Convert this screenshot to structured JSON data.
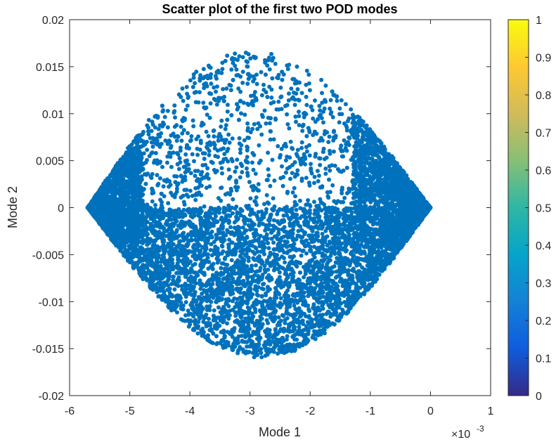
{
  "chart_data": {
    "type": "scatter",
    "title": "Scatter plot of the first two POD modes",
    "xlabel": "Mode 1",
    "ylabel": "Mode 2",
    "x_exponent_label": "×10",
    "x_exponent_power": "-3",
    "xlim": [
      -6,
      1
    ],
    "ylim": [
      -0.02,
      0.02
    ],
    "x_ticks": [
      -6,
      -5,
      -4,
      -3,
      -2,
      -1,
      0,
      1
    ],
    "x_tick_labels": [
      "-6",
      "-5",
      "-4",
      "-3",
      "-2",
      "-1",
      "0",
      "1"
    ],
    "y_ticks": [
      -0.02,
      -0.015,
      -0.01,
      -0.005,
      0,
      0.005,
      0.01,
      0.015,
      0.02
    ],
    "y_tick_labels": [
      "-0.02",
      "-0.015",
      "-0.01",
      "-0.005",
      "0",
      "0.005",
      "0.01",
      "0.015",
      "0.02"
    ],
    "grid": false,
    "marker_color": "#0072BD",
    "point_cloud": {
      "shape": "lens",
      "x_range": [
        -5.7,
        0.0
      ],
      "y_upper_peak": [
        -3.0,
        0.0167
      ],
      "y_lower_peak": [
        -2.8,
        -0.016
      ],
      "dense_regions": [
        "left wedge",
        "right wedge",
        "lower half"
      ]
    },
    "colorbar": {
      "colormap": "parula",
      "range": [
        0,
        1
      ],
      "ticks": [
        0,
        0.1,
        0.2,
        0.3,
        0.4,
        0.5,
        0.6,
        0.7,
        0.8,
        0.9,
        1
      ],
      "tick_labels": [
        "0",
        "0.1",
        "0.2",
        "0.3",
        "0.4",
        "0.5",
        "0.6",
        "0.7",
        "0.8",
        "0.9",
        "1"
      ],
      "colors": [
        "#352A87",
        "#0F5CDD",
        "#1481D6",
        "#06A4CA",
        "#2EB7A4",
        "#87BF77",
        "#D1BB59",
        "#FEC832",
        "#F9FB0E"
      ]
    }
  }
}
